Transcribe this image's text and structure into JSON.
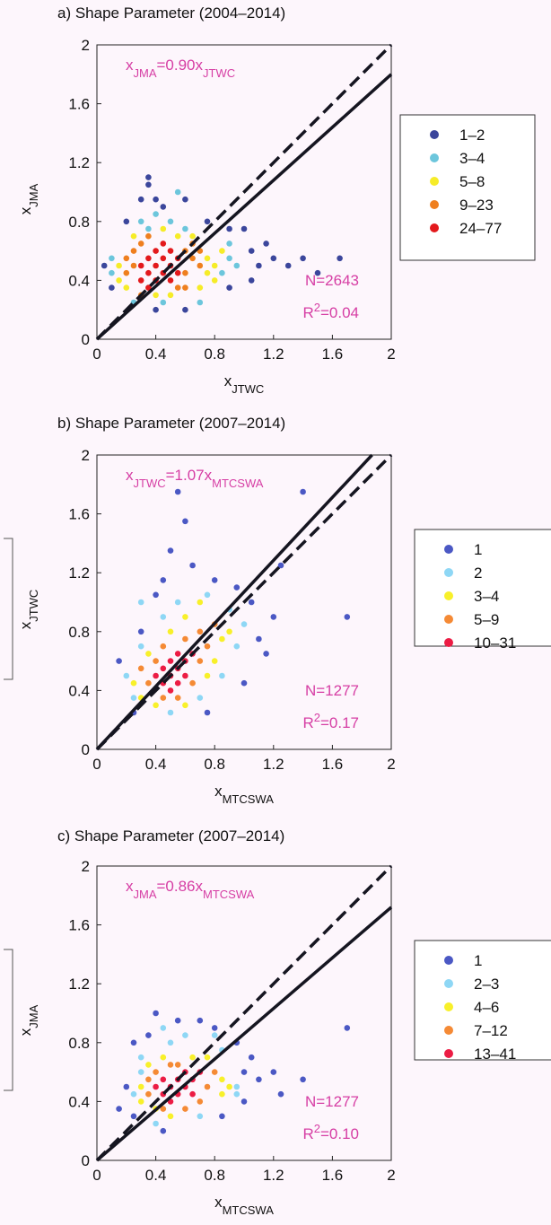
{
  "chart_data": [
    {
      "type": "scatter",
      "title": "a) Shape Parameter (2004–2014)",
      "xlabel": [
        "x",
        "JTWC"
      ],
      "ylabel": [
        "x",
        "JMA"
      ],
      "equation": [
        "x",
        "JMA",
        "=0.90x",
        "JTWC"
      ],
      "n_label": "N=2643",
      "r2_label": [
        "R",
        "2",
        "=0.04"
      ],
      "fit_slope": 0.9,
      "reference_slope": 1,
      "xlim": [
        0,
        2
      ],
      "ylim": [
        0,
        2
      ],
      "xticks": [
        0,
        0.4,
        0.8,
        1.2,
        1.6,
        2
      ],
      "yticks": [
        0,
        0.4,
        0.8,
        1.2,
        1.6,
        2
      ],
      "series": [
        {
          "name": "1–2",
          "color": "#3b469c",
          "x": [
            0.05,
            0.1,
            0.2,
            0.35,
            0.35,
            0.4,
            0.45,
            0.6,
            0.75,
            0.9,
            1.0,
            1.05,
            1.1,
            1.2,
            1.3,
            1.4,
            1.5,
            1.65,
            1.05,
            0.9,
            0.4,
            0.3,
            0.6,
            1.15
          ],
          "values": [
            0.5,
            0.35,
            0.8,
            1.05,
            1.1,
            0.95,
            0.9,
            0.95,
            0.8,
            0.75,
            0.75,
            0.6,
            0.5,
            0.55,
            0.5,
            0.55,
            0.45,
            0.55,
            0.4,
            0.35,
            0.2,
            0.95,
            0.2,
            0.65
          ]
        },
        {
          "name": "3–4",
          "color": "#6cc6dc",
          "x": [
            0.1,
            0.3,
            0.4,
            0.5,
            0.6,
            0.85,
            0.9,
            0.45,
            0.25,
            0.9,
            0.35,
            0.7,
            0.55,
            0.95,
            0.1
          ],
          "values": [
            0.45,
            0.8,
            0.85,
            0.8,
            0.75,
            0.45,
            0.55,
            0.25,
            0.25,
            0.65,
            0.75,
            0.25,
            1.0,
            0.5,
            0.55
          ]
        },
        {
          "name": "5–8",
          "color": "#f6ec28",
          "x": [
            0.15,
            0.15,
            0.2,
            0.75,
            0.75,
            0.8,
            0.4,
            0.5,
            0.7,
            0.45,
            0.55,
            0.65,
            0.25,
            0.85,
            0.8
          ],
          "values": [
            0.4,
            0.5,
            0.35,
            0.55,
            0.45,
            0.5,
            0.3,
            0.3,
            0.35,
            0.75,
            0.7,
            0.7,
            0.7,
            0.6,
            0.4
          ]
        },
        {
          "name": "9–23",
          "color": "#ef7f1f",
          "x": [
            0.2,
            0.25,
            0.25,
            0.3,
            0.6,
            0.65,
            0.6,
            0.65,
            0.7,
            0.2,
            0.55,
            0.3,
            0.6,
            0.7,
            0.35
          ],
          "values": [
            0.45,
            0.5,
            0.6,
            0.65,
            0.6,
            0.55,
            0.45,
            0.65,
            0.5,
            0.55,
            0.35,
            0.3,
            0.35,
            0.6,
            0.7
          ]
        },
        {
          "name": "24–77",
          "color": "#e3191c",
          "x": [
            0.3,
            0.35,
            0.4,
            0.45,
            0.5,
            0.35,
            0.4,
            0.45,
            0.5,
            0.55,
            0.3,
            0.4,
            0.5,
            0.55,
            0.45,
            0.35
          ],
          "values": [
            0.4,
            0.45,
            0.5,
            0.55,
            0.6,
            0.55,
            0.4,
            0.45,
            0.5,
            0.55,
            0.5,
            0.6,
            0.4,
            0.45,
            0.65,
            0.35
          ]
        }
      ]
    },
    {
      "type": "scatter",
      "title": "b) Shape Parameter (2007–2014)",
      "xlabel": [
        "x",
        "MTCSWA"
      ],
      "ylabel": [
        "x",
        "JTWC"
      ],
      "equation": [
        "x",
        "JTWC",
        "=1.07x",
        "MTCSWA"
      ],
      "n_label": "N=1277",
      "r2_label": [
        "R",
        "2",
        "=0.17"
      ],
      "fit_slope": 1.07,
      "reference_slope": 1,
      "xlim": [
        0,
        2
      ],
      "ylim": [
        0,
        2
      ],
      "xticks": [
        0,
        0.4,
        0.8,
        1.2,
        1.6,
        2
      ],
      "yticks": [
        0,
        0.4,
        0.8,
        1.2,
        1.6,
        2
      ],
      "series": [
        {
          "name": "1",
          "color": "#4b58c4",
          "x": [
            0.15,
            0.25,
            0.3,
            0.45,
            0.5,
            0.6,
            0.55,
            0.65,
            0.8,
            0.95,
            1.05,
            1.1,
            1.15,
            1.25,
            1.4,
            1.7,
            0.75,
            1.0,
            0.4,
            1.2
          ],
          "values": [
            0.6,
            0.25,
            0.8,
            1.15,
            1.35,
            1.55,
            1.75,
            1.25,
            1.15,
            1.1,
            1.0,
            0.75,
            0.65,
            1.25,
            1.75,
            0.9,
            0.25,
            0.45,
            1.05,
            0.9
          ]
        },
        {
          "name": "2",
          "color": "#8ed7f5",
          "x": [
            0.2,
            0.25,
            0.3,
            0.45,
            0.55,
            0.75,
            0.9,
            0.95,
            0.85,
            0.7,
            0.3,
            1.0,
            0.5
          ],
          "values": [
            0.5,
            0.35,
            0.7,
            0.9,
            1.0,
            1.05,
            0.95,
            0.7,
            0.5,
            0.35,
            1.0,
            0.85,
            0.25
          ]
        },
        {
          "name": "3–4",
          "color": "#f8f02a",
          "x": [
            0.25,
            0.3,
            0.35,
            0.5,
            0.6,
            0.7,
            0.8,
            0.85,
            0.6,
            0.4,
            0.9,
            0.75
          ],
          "values": [
            0.45,
            0.35,
            0.65,
            0.8,
            0.9,
            1.0,
            0.6,
            0.75,
            0.3,
            0.3,
            0.8,
            0.5
          ]
        },
        {
          "name": "5–9",
          "color": "#f58a35",
          "x": [
            0.35,
            0.4,
            0.45,
            0.6,
            0.7,
            0.7,
            0.75,
            0.65,
            0.45,
            0.55,
            0.3,
            0.8
          ],
          "values": [
            0.45,
            0.6,
            0.7,
            0.75,
            0.6,
            0.8,
            0.7,
            0.45,
            0.35,
            0.35,
            0.55,
            0.85
          ]
        },
        {
          "name": "10–31",
          "color": "#ec1c44",
          "x": [
            0.45,
            0.5,
            0.55,
            0.6,
            0.5,
            0.45,
            0.55,
            0.6,
            0.4,
            0.65,
            0.5,
            0.55
          ],
          "values": [
            0.45,
            0.5,
            0.55,
            0.6,
            0.4,
            0.55,
            0.45,
            0.5,
            0.5,
            0.65,
            0.6,
            0.65
          ]
        }
      ]
    },
    {
      "type": "scatter",
      "title": "c) Shape Parameter (2007–2014)",
      "xlabel": [
        "x",
        "MTCSWA"
      ],
      "ylabel": [
        "x",
        "JMA"
      ],
      "equation": [
        "x",
        "JMA",
        "=0.86x",
        "MTCSWA"
      ],
      "n_label": "N=1277",
      "r2_label": [
        "R",
        "2",
        "=0.10"
      ],
      "fit_slope": 0.86,
      "reference_slope": 1,
      "xlim": [
        0,
        2
      ],
      "ylim": [
        0,
        2
      ],
      "xticks": [
        0,
        0.4,
        0.8,
        1.2,
        1.6,
        2
      ],
      "yticks": [
        0,
        0.4,
        0.8,
        1.2,
        1.6,
        2
      ],
      "series": [
        {
          "name": "1",
          "color": "#4b58c4",
          "x": [
            0.15,
            0.2,
            0.25,
            0.25,
            0.4,
            0.55,
            0.7,
            0.8,
            0.95,
            1.0,
            1.1,
            1.2,
            1.25,
            1.4,
            1.7,
            0.45,
            0.85,
            1.0,
            0.35,
            1.05
          ],
          "values": [
            0.35,
            0.5,
            0.8,
            0.3,
            1.0,
            0.95,
            0.95,
            0.9,
            0.8,
            0.6,
            0.55,
            0.6,
            0.45,
            0.55,
            0.9,
            0.2,
            0.3,
            0.4,
            0.85,
            0.7
          ]
        },
        {
          "name": "2–3",
          "color": "#8ed7f5",
          "x": [
            0.25,
            0.3,
            0.5,
            0.6,
            0.8,
            0.95,
            0.95,
            0.4,
            0.7,
            0.45,
            0.85,
            0.3
          ],
          "values": [
            0.45,
            0.6,
            0.8,
            0.85,
            0.85,
            0.5,
            0.45,
            0.25,
            0.3,
            0.9,
            0.75,
            0.7
          ]
        },
        {
          "name": "4–6",
          "color": "#f8f02a",
          "x": [
            0.3,
            0.3,
            0.4,
            0.5,
            0.85,
            0.85,
            0.75,
            0.45,
            0.65,
            0.9,
            0.35
          ],
          "values": [
            0.4,
            0.5,
            0.35,
            0.3,
            0.45,
            0.55,
            0.7,
            0.7,
            0.7,
            0.5,
            0.65
          ]
        },
        {
          "name": "7–12",
          "color": "#f58a35",
          "x": [
            0.35,
            0.4,
            0.5,
            0.75,
            0.8,
            0.7,
            0.45,
            0.35,
            0.6,
            0.55
          ],
          "values": [
            0.45,
            0.6,
            0.65,
            0.5,
            0.6,
            0.4,
            0.35,
            0.55,
            0.35,
            0.65
          ]
        },
        {
          "name": "13–41",
          "color": "#ec1c44",
          "x": [
            0.45,
            0.5,
            0.55,
            0.6,
            0.5,
            0.55,
            0.6,
            0.65,
            0.45,
            0.7,
            0.4,
            0.65
          ],
          "values": [
            0.45,
            0.5,
            0.55,
            0.6,
            0.4,
            0.45,
            0.5,
            0.55,
            0.55,
            0.6,
            0.5,
            0.45
          ]
        }
      ]
    }
  ]
}
